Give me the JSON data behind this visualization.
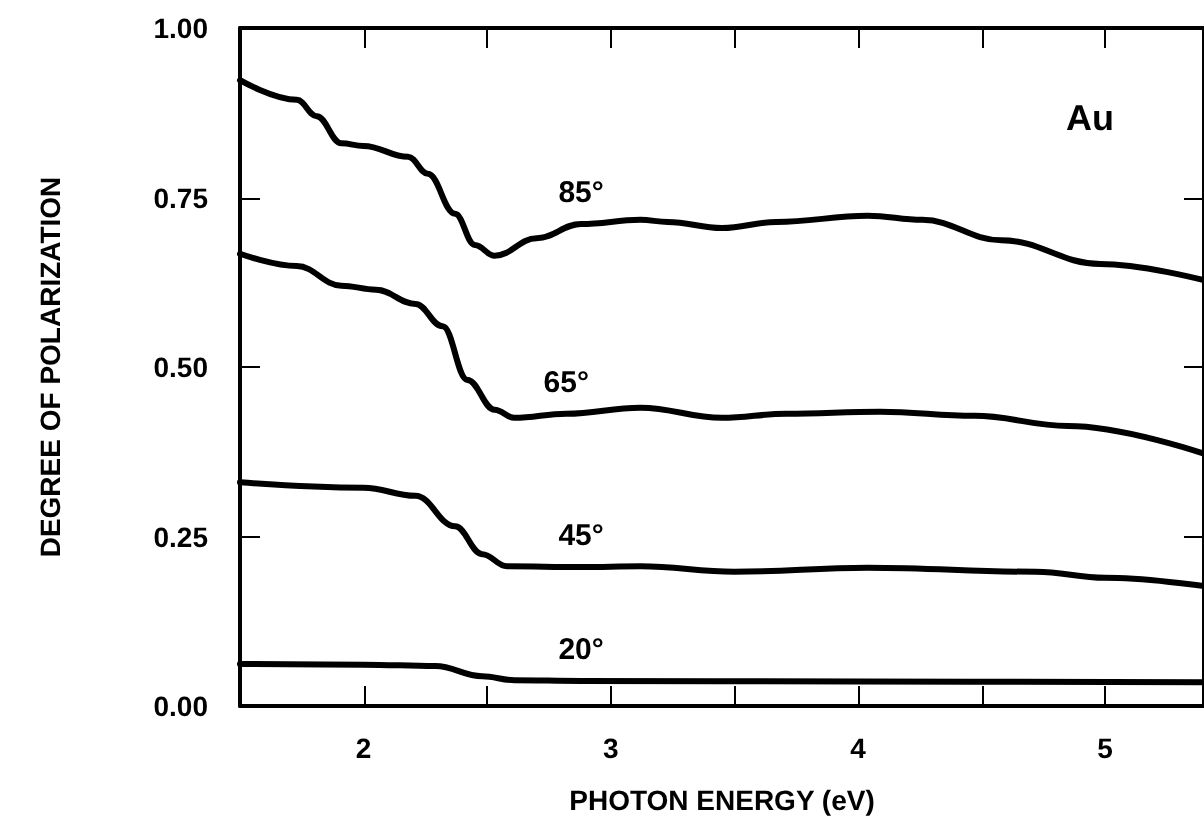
{
  "chart_data": {
    "type": "line",
    "xlabel": "PHOTON ENERGY (eV)",
    "ylabel": "DEGREE OF POLARIZATION",
    "annotations": [
      "Au"
    ],
    "xlim": [
      1.5,
      5.4
    ],
    "ylim": [
      0,
      1
    ],
    "xticks": [
      2,
      {
        "value": 2.5,
        "label": null
      },
      3,
      {
        "value": 3.5,
        "label": null
      },
      4,
      {
        "value": 4.5,
        "label": null
      },
      5
    ],
    "yticks": [
      {
        "value": 0,
        "label": "0.00"
      },
      {
        "value": 0.25,
        "label": "0.25"
      },
      {
        "value": 0.5,
        "label": "0.50"
      },
      {
        "value": 0.75,
        "label": "0.75"
      },
      {
        "value": 1,
        "label": "1.00"
      }
    ],
    "grid": false,
    "marker": "none",
    "line_style": "solid",
    "series": [
      {
        "name": "85°",
        "color": "#000000",
        "x": [
          1.5,
          1.73,
          1.81,
          1.91,
          2.0,
          2.18,
          2.26,
          2.37,
          2.45,
          2.53,
          2.7,
          2.88,
          3.12,
          3.23,
          3.45,
          3.67,
          4.04,
          4.26,
          4.58,
          4.98,
          5.4
        ],
        "values": [
          0.923,
          0.894,
          0.87,
          0.83,
          0.826,
          0.81,
          0.785,
          0.726,
          0.68,
          0.664,
          0.69,
          0.711,
          0.717,
          0.714,
          0.705,
          0.714,
          0.723,
          0.717,
          0.687,
          0.652,
          0.628
        ]
      },
      {
        "name": "65°",
        "color": "#000000",
        "x": [
          1.5,
          1.73,
          1.91,
          2.05,
          2.21,
          2.32,
          2.42,
          2.53,
          2.61,
          2.82,
          3.12,
          3.45,
          3.71,
          4.09,
          4.47,
          4.85,
          5.4
        ],
        "values": [
          0.667,
          0.649,
          0.62,
          0.614,
          0.593,
          0.56,
          0.481,
          0.437,
          0.425,
          0.431,
          0.44,
          0.425,
          0.431,
          0.434,
          0.428,
          0.413,
          0.372
        ]
      },
      {
        "name": "45°",
        "color": "#000000",
        "x": [
          1.5,
          2.0,
          2.21,
          2.37,
          2.48,
          2.58,
          2.88,
          3.12,
          3.5,
          4.04,
          4.72,
          5.0,
          5.4
        ],
        "values": [
          0.33,
          0.322,
          0.31,
          0.265,
          0.224,
          0.206,
          0.205,
          0.206,
          0.198,
          0.204,
          0.198,
          0.189,
          0.177
        ]
      },
      {
        "name": "20°",
        "color": "#000000",
        "x": [
          1.5,
          2.0,
          2.29,
          2.48,
          2.61,
          2.88,
          4.0,
          5.4
        ],
        "values": [
          0.062,
          0.061,
          0.059,
          0.044,
          0.038,
          0.037,
          0.036,
          0.035
        ]
      }
    ]
  }
}
